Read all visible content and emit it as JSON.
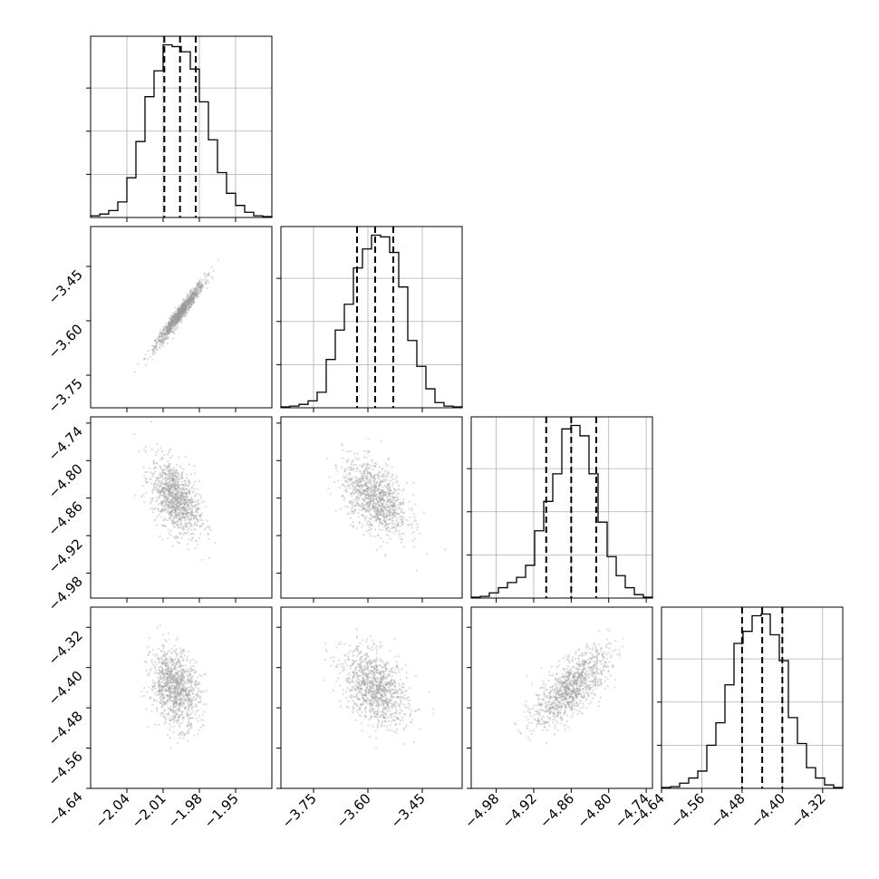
{
  "chart_data": {
    "type": "corner",
    "grid": true,
    "params": [
      {
        "hist_ticks": [
          -2.04,
          -2.01,
          -1.98,
          -1.95
        ],
        "tick_labels": [
          "−2.04",
          "−2.01",
          "−1.98",
          "−1.95"
        ],
        "range": [
          -2.07,
          -1.92
        ],
        "quantiles": [
          -2.009,
          -1.996,
          -1.983
        ],
        "hist_counts": [
          1,
          2,
          4,
          9,
          23,
          44,
          70,
          85,
          100,
          99,
          96,
          86,
          67,
          45,
          26,
          14,
          7,
          3,
          1,
          0.5
        ],
        "hist_ymax": 105,
        "std": 0.01
      },
      {
        "hist_ticks": [
          -3.75,
          -3.6,
          -3.45
        ],
        "tick_labels": [
          "−3.75",
          "−3.60",
          "−3.45"
        ],
        "range": [
          -3.84,
          -3.34
        ],
        "quantiles": [
          -3.63,
          -3.58,
          -3.53
        ],
        "hist_counts": [
          0.5,
          1,
          2,
          4,
          9,
          28,
          45,
          60,
          81,
          92,
          100,
          99,
          90,
          70,
          39,
          24,
          11,
          3,
          1,
          0.5
        ],
        "hist_ymax": 105,
        "std": 0.045
      },
      {
        "hist_ticks": [
          -4.98,
          -4.92,
          -4.86,
          -4.8,
          -4.74
        ],
        "tick_labels": [
          "−4.98",
          "−4.92",
          "−4.86",
          "−4.80",
          "−4.74"
        ],
        "range": [
          -5.02,
          -4.73
        ],
        "quantiles": [
          -4.9,
          -4.86,
          -4.82
        ],
        "hist_counts": [
          0.5,
          1,
          3,
          6,
          9,
          12,
          19,
          39,
          56,
          72,
          98,
          100,
          94,
          72,
          44,
          24,
          13,
          6,
          2,
          0.5
        ],
        "hist_ymax": 105,
        "std": 0.03
      },
      {
        "hist_ticks": [
          -4.64,
          -4.56,
          -4.48,
          -4.4,
          -4.32
        ],
        "tick_labels": [
          "−4.64",
          "−4.56",
          "−4.48",
          "−4.40",
          "−4.32"
        ],
        "range": [
          -4.64,
          -4.28
        ],
        "quantiles": [
          -4.48,
          -4.44,
          -4.4
        ],
        "hist_counts": [
          0.5,
          1,
          3,
          6,
          10,
          25,
          38,
          60,
          84,
          91,
          100,
          101,
          89,
          74,
          41,
          26,
          12,
          6,
          2,
          0.5
        ],
        "hist_ymax": 105,
        "std": 0.038
      }
    ],
    "contours": [
      {
        "row": 1,
        "col": 0,
        "center": [
          -1.996,
          -3.58
        ],
        "corr": 0.97
      },
      {
        "row": 2,
        "col": 0,
        "center": [
          -2.0,
          -4.86
        ],
        "corr": -0.45
      },
      {
        "row": 2,
        "col": 1,
        "center": [
          -3.58,
          -4.86
        ],
        "corr": -0.45
      },
      {
        "row": 3,
        "col": 0,
        "center": [
          -2.0,
          -4.44
        ],
        "corr": -0.25
      },
      {
        "row": 3,
        "col": 1,
        "center": [
          -3.58,
          -4.44
        ],
        "corr": -0.4
      },
      {
        "row": 3,
        "col": 2,
        "center": [
          -4.86,
          -4.44
        ],
        "corr": 0.7
      }
    ],
    "left_tick_params": [
      null,
      1,
      2,
      3
    ],
    "bottom_tick_params": [
      0,
      1,
      2,
      3
    ]
  }
}
